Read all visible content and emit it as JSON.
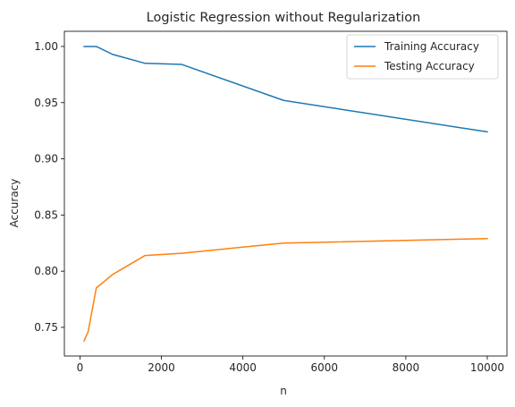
{
  "chart_data": {
    "type": "line",
    "title": "Logistic Regression without Regularization",
    "xlabel": "n",
    "ylabel": "Accuracy",
    "xlim": [
      -383,
      10483
    ],
    "ylim": [
      0.7245,
      1.0135
    ],
    "xticks": [
      0,
      2000,
      4000,
      6000,
      8000,
      10000
    ],
    "yticks": [
      0.75,
      0.8,
      0.85,
      0.9,
      0.95,
      1.0
    ],
    "ytick_labels": [
      "0.75",
      "0.80",
      "0.85",
      "0.90",
      "0.95",
      "1.00"
    ],
    "grid": false,
    "legend_position": "top-right",
    "x": [
      100,
      200,
      400,
      800,
      1600,
      2500,
      5000,
      10000
    ],
    "series": [
      {
        "name": "Training Accuracy",
        "color": "#1f77b4",
        "values": [
          1.0,
          1.0,
          1.0,
          0.993,
          0.985,
          0.984,
          0.952,
          0.924
        ]
      },
      {
        "name": "Testing Accuracy",
        "color": "#ff7f0e",
        "values": [
          0.738,
          0.746,
          0.785,
          0.797,
          0.814,
          0.816,
          0.825,
          0.829
        ]
      }
    ]
  }
}
